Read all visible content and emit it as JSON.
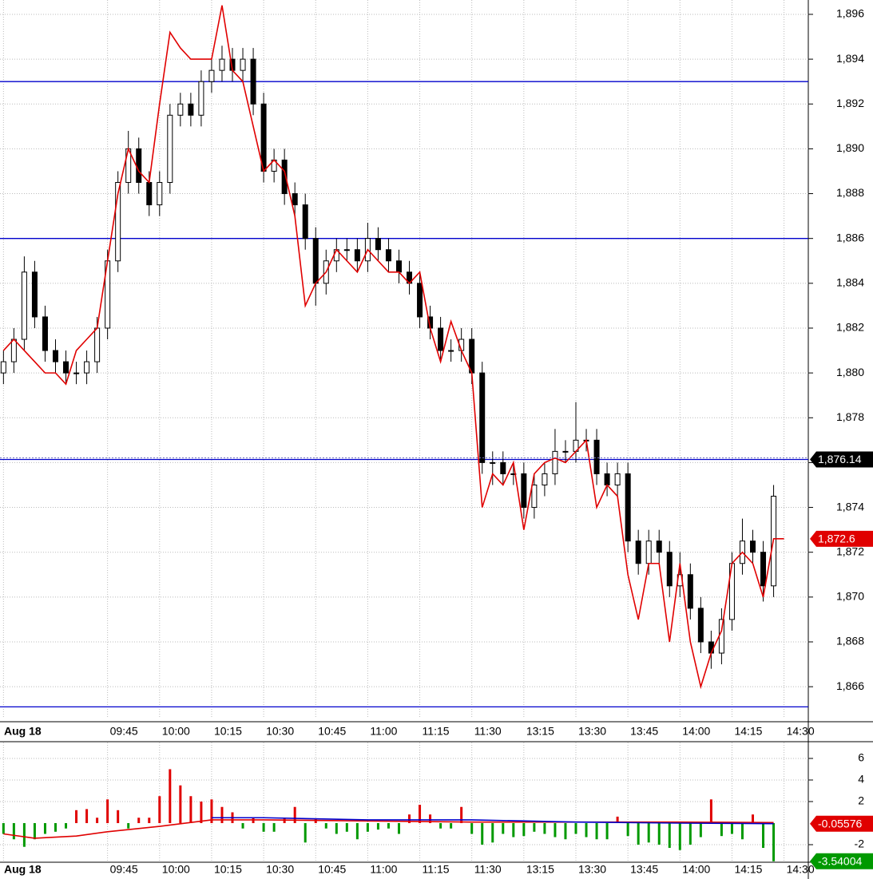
{
  "chart_data": [
    {
      "type": "candlestick",
      "x": [
        0,
        3,
        6,
        9,
        12,
        15,
        18,
        21,
        24,
        27,
        30,
        33,
        36,
        39,
        42,
        45,
        48,
        51,
        54,
        57,
        60,
        63,
        66,
        69,
        72,
        75,
        78,
        81,
        84,
        87,
        90,
        93,
        96,
        99,
        102,
        105,
        108,
        111,
        114,
        117,
        120,
        123,
        126,
        129,
        132,
        135,
        138,
        141,
        144,
        147,
        150,
        153,
        156,
        159,
        162,
        165,
        168,
        171,
        174,
        177,
        180,
        183,
        186,
        189,
        192,
        195,
        198,
        201,
        204,
        207,
        210,
        213,
        216,
        219,
        222
      ],
      "open": [
        1880,
        1880.5,
        1881.5,
        1884.5,
        1882.5,
        1881,
        1880.5,
        1880,
        1880,
        1880.5,
        1882,
        1885,
        1888.5,
        1890,
        1888.5,
        1887.5,
        1888.5,
        1891.5,
        1892,
        1891.5,
        1893,
        1893.5,
        1894,
        1893.5,
        1894,
        1892,
        1889,
        1889.5,
        1888,
        1887.5,
        1886,
        1884,
        1885,
        1885.5,
        1885.5,
        1885,
        1886,
        1885.5,
        1885,
        1884.5,
        1884,
        1882.5,
        1882,
        1881,
        1881,
        1881.5,
        1880,
        1876,
        1876,
        1875.5,
        1875.5,
        1874,
        1875,
        1875.5,
        1876.5,
        1876.5,
        1877,
        1877,
        1875.5,
        1875,
        1875.5,
        1872.5,
        1871.5,
        1872.5,
        1872,
        1870.5,
        1871,
        1869.5,
        1868,
        1867.5,
        1869,
        1871.5,
        1872.5,
        1872,
        1870.5
      ],
      "high": [
        1881,
        1882,
        1885.2,
        1885,
        1883,
        1881.5,
        1881,
        1880.5,
        1881,
        1882.5,
        1885.5,
        1889,
        1890.8,
        1890.5,
        1889,
        1889,
        1892,
        1892.5,
        1892.5,
        1893.5,
        1894,
        1894.6,
        1894.5,
        1894.5,
        1894.5,
        1892.5,
        1890,
        1890,
        1888.5,
        1888,
        1886.5,
        1885.5,
        1886,
        1886,
        1886,
        1886.7,
        1886.5,
        1886,
        1885.5,
        1885,
        1884.5,
        1883,
        1882.5,
        1881.5,
        1882,
        1882,
        1880.5,
        1876.5,
        1876.5,
        1876,
        1876,
        1875.5,
        1876,
        1877.5,
        1877,
        1878.7,
        1877.5,
        1877.5,
        1876,
        1876,
        1876,
        1873,
        1873,
        1873,
        1872.5,
        1872,
        1871.5,
        1870,
        1868.5,
        1869.5,
        1872,
        1873.5,
        1873,
        1872.5,
        1875
      ],
      "low": [
        1879.5,
        1880,
        1881,
        1882,
        1880.5,
        1880,
        1879.5,
        1879.5,
        1879.5,
        1880,
        1881.5,
        1884.5,
        1888,
        1888,
        1887,
        1887,
        1888,
        1891,
        1891,
        1891,
        1892.5,
        1893,
        1893,
        1893,
        1891.5,
        1888.5,
        1888.5,
        1887.5,
        1887,
        1885.5,
        1883,
        1883.5,
        1884.5,
        1885,
        1884.5,
        1884.5,
        1885,
        1884.5,
        1884,
        1883.5,
        1882,
        1881.5,
        1880.5,
        1880.5,
        1880.5,
        1879.5,
        1875.5,
        1875,
        1875,
        1875,
        1873.5,
        1873.5,
        1874.5,
        1875,
        1876,
        1876,
        1876.5,
        1875,
        1874.5,
        1874.5,
        1872,
        1871,
        1871,
        1871.5,
        1870,
        1870,
        1869,
        1867.5,
        1866.8,
        1867,
        1868.5,
        1871,
        1871.5,
        1869.8,
        1870
      ],
      "close": [
        1880.5,
        1881.5,
        1884.5,
        1882.5,
        1881,
        1880.5,
        1880,
        1880,
        1880.5,
        1882,
        1885,
        1888.5,
        1890,
        1888.5,
        1887.5,
        1888.5,
        1891.5,
        1892,
        1891.5,
        1893,
        1893.5,
        1894,
        1893.5,
        1894,
        1892,
        1889,
        1889.5,
        1888,
        1887.5,
        1886,
        1884,
        1885,
        1885.5,
        1885.5,
        1885,
        1886,
        1885.5,
        1885,
        1884.5,
        1884,
        1882.5,
        1882,
        1881,
        1881,
        1881.5,
        1880,
        1876,
        1876,
        1875.5,
        1875.5,
        1874,
        1875,
        1875.5,
        1876.5,
        1876.5,
        1877,
        1877,
        1875.5,
        1875,
        1875.5,
        1872.5,
        1871.5,
        1872.5,
        1872,
        1870.5,
        1871,
        1869.5,
        1868,
        1867.5,
        1869,
        1871.5,
        1872.5,
        1872,
        1870.5,
        1874.5
      ],
      "up_color": "#ffffff",
      "down_color": "#000000",
      "series": [
        {
          "color": "#e00000",
          "x": [
            0,
            3,
            6,
            9,
            12,
            15,
            18,
            21,
            24,
            27,
            30,
            33,
            36,
            39,
            42,
            45,
            48,
            51,
            54,
            57,
            60,
            63,
            66,
            69,
            72,
            75,
            78,
            81,
            84,
            87,
            90,
            93,
            96,
            99,
            102,
            105,
            108,
            111,
            114,
            117,
            120,
            123,
            126,
            129,
            132,
            135,
            138,
            141,
            144,
            147,
            150,
            153,
            156,
            159,
            162,
            165,
            168,
            171,
            174,
            177,
            180,
            183,
            186,
            189,
            192,
            195,
            198,
            201,
            204,
            207,
            210,
            213,
            216,
            219,
            222,
            225
          ],
          "values": [
            1881,
            1881.5,
            1881,
            1880.5,
            1880,
            1880,
            1879.5,
            1881,
            1881.5,
            1882,
            1885,
            1888,
            1890,
            1889,
            1888.5,
            1892,
            1895.2,
            1894.5,
            1894,
            1894,
            1894,
            1896.4,
            1893.5,
            1893,
            1891,
            1889,
            1889.5,
            1889,
            1887,
            1883,
            1884,
            1884.5,
            1885.5,
            1885,
            1884.5,
            1885.5,
            1885,
            1884.5,
            1884.5,
            1884,
            1884.5,
            1882,
            1880.5,
            1882.3,
            1881,
            1880,
            1874,
            1875.5,
            1875,
            1876,
            1873,
            1875.5,
            1876,
            1876.2,
            1876,
            1876.5,
            1877,
            1874,
            1875,
            1874.5,
            1871,
            1869,
            1871.5,
            1871.5,
            1868,
            1871.5,
            1868,
            1866,
            1867.5,
            1868.5,
            1871.5,
            1872,
            1871.5,
            1870,
            1872.6,
            1872.6
          ]
        }
      ],
      "hlines": {
        "color": "#0000cc",
        "values": [
          1893,
          1886,
          1876.14,
          1865.1
        ]
      },
      "markers": [
        {
          "value": 1876.14,
          "label": "1,876.14",
          "color": "#000000"
        },
        {
          "value": 1872.6,
          "label": "1,872.6",
          "color": "#e00000"
        }
      ],
      "xlim": [
        -1,
        232
      ],
      "xticks": [
        {
          "value": 0,
          "label": "Aug 18"
        },
        {
          "value": 30,
          "label": "09:45"
        },
        {
          "value": 45,
          "label": "10:00"
        },
        {
          "value": 60,
          "label": "10:15"
        },
        {
          "value": 75,
          "label": "10:30"
        },
        {
          "value": 90,
          "label": "10:45"
        },
        {
          "value": 105,
          "label": "11:00"
        },
        {
          "value": 120,
          "label": "11:15"
        },
        {
          "value": 135,
          "label": "11:30"
        },
        {
          "value": 150,
          "label": "13:15"
        },
        {
          "value": 165,
          "label": "13:30"
        },
        {
          "value": 180,
          "label": "13:45"
        },
        {
          "value": 195,
          "label": "14:00"
        },
        {
          "value": 210,
          "label": "14:15"
        },
        {
          "value": 225,
          "label": "14:30"
        }
      ],
      "ylim": [
        1864.58,
        1896.64
      ],
      "yticks": [
        {
          "value": 1866,
          "label": "1,866"
        },
        {
          "value": 1868,
          "label": "1,868"
        },
        {
          "value": 1870,
          "label": "1,870"
        },
        {
          "value": 1872,
          "label": "1,872"
        },
        {
          "value": 1874,
          "label": "1,874"
        },
        {
          "value": 1876,
          "label": "1,876"
        },
        {
          "value": 1878,
          "label": "1,878"
        },
        {
          "value": 1880,
          "label": "1,880"
        },
        {
          "value": 1882,
          "label": "1,882"
        },
        {
          "value": 1884,
          "label": "1,884"
        },
        {
          "value": 1886,
          "label": "1,886"
        },
        {
          "value": 1888,
          "label": "1,888"
        },
        {
          "value": 1890,
          "label": "1,890"
        },
        {
          "value": 1892,
          "label": "1,892"
        },
        {
          "value": 1894,
          "label": "1,894"
        },
        {
          "value": 1896,
          "label": "1,896"
        }
      ],
      "grid": true
    },
    {
      "type": "bar",
      "x": [
        0,
        3,
        6,
        9,
        12,
        15,
        18,
        21,
        24,
        27,
        30,
        33,
        36,
        39,
        42,
        45,
        48,
        51,
        54,
        57,
        60,
        63,
        66,
        69,
        72,
        75,
        78,
        81,
        84,
        87,
        90,
        93,
        96,
        99,
        102,
        105,
        108,
        111,
        114,
        117,
        120,
        123,
        126,
        129,
        132,
        135,
        138,
        141,
        144,
        147,
        150,
        153,
        156,
        159,
        162,
        165,
        168,
        171,
        174,
        177,
        180,
        183,
        186,
        189,
        192,
        195,
        198,
        201,
        204,
        207,
        210,
        213,
        216,
        219,
        222
      ],
      "values": [
        -1,
        -1.5,
        -2.2,
        -1.5,
        -1,
        -0.8,
        -0.5,
        1.2,
        1.3,
        0.5,
        2.2,
        1.2,
        -0.5,
        0.5,
        0.5,
        2.5,
        5,
        3.5,
        2.5,
        2,
        2.2,
        1.5,
        1,
        -0.5,
        0.5,
        -0.8,
        -0.8,
        0.5,
        1.5,
        -1.8,
        0.4,
        -0.5,
        -1,
        -0.8,
        -1.5,
        -0.8,
        -0.6,
        -0.5,
        -1,
        0.8,
        1.7,
        0.8,
        -0.5,
        -0.5,
        1.5,
        -1,
        -2,
        -1.8,
        -1,
        -1.3,
        -1.2,
        -0.8,
        -1,
        -1.3,
        -1.5,
        -1,
        -1.3,
        -1.5,
        -1.5,
        0.6,
        -1.2,
        -2,
        -1.8,
        -2,
        -2.3,
        -2.5,
        -2,
        -1.3,
        2.2,
        -1.2,
        -1,
        -1.5,
        0.8,
        -2.3,
        -3.54004
      ],
      "pos_color": "#e00000",
      "neg_color": "#009900",
      "series": [
        {
          "color": "#e00000",
          "x": [
            0,
            9,
            21,
            30,
            45,
            60,
            75,
            105,
            135,
            165,
            195,
            222
          ],
          "values": [
            -1,
            -1.4,
            -1.2,
            -0.8,
            -0.3,
            0.3,
            0.3,
            0.2,
            0.1,
            0.1,
            0.1,
            0.05
          ]
        },
        {
          "color": "#0000cc",
          "x": [
            60,
            75,
            105,
            135,
            165,
            195,
            222
          ],
          "values": [
            0.5,
            0.5,
            0.3,
            0.3,
            0.1,
            0,
            -0.05
          ]
        }
      ],
      "markers": [
        {
          "value": -0.05576,
          "label": "-0.05576",
          "color": "#e00000"
        },
        {
          "value": -3.54004,
          "label": "-3.54004",
          "color": "#009900"
        }
      ],
      "xlim": [
        -1,
        232
      ],
      "ylim": [
        -3.63,
        7.48
      ],
      "yticks": [
        -2,
        2,
        4,
        6
      ],
      "grid": true
    }
  ]
}
